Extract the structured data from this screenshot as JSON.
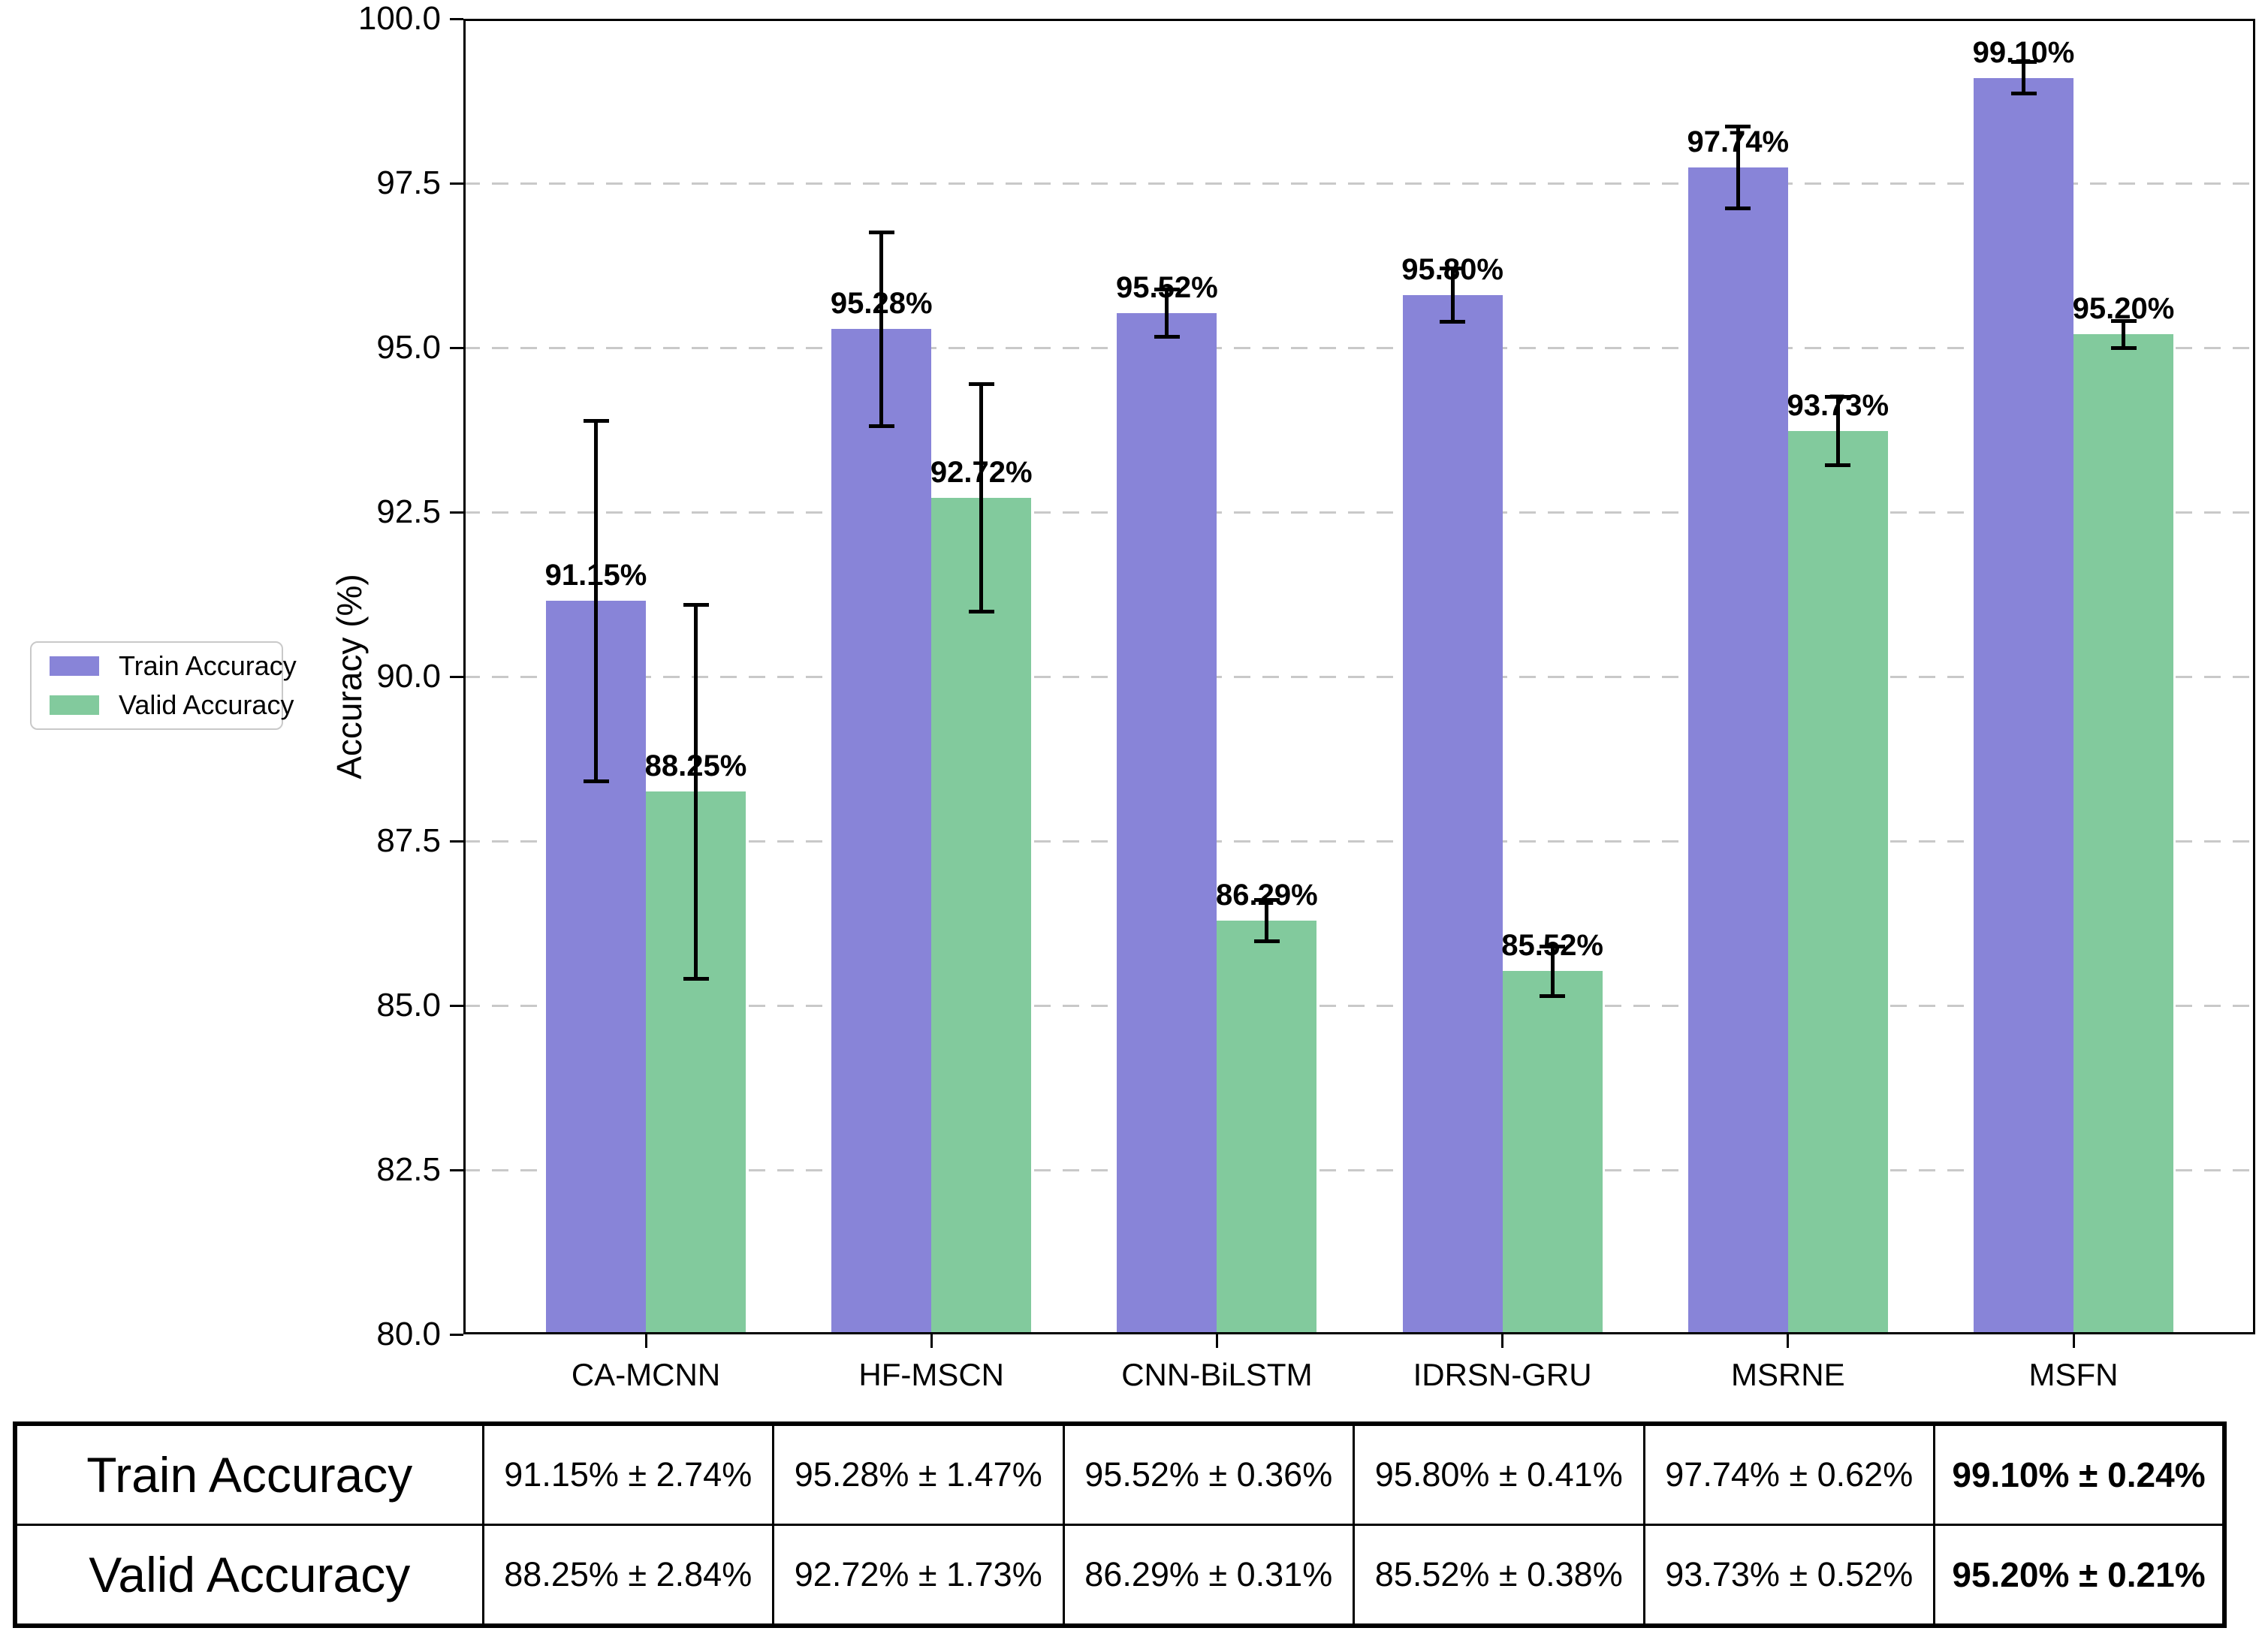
{
  "figure": {
    "background": "#ffffff"
  },
  "legend": {
    "items": [
      {
        "label": "Train Accuracy",
        "color": "#8884d8"
      },
      {
        "label": "Valid Accuracy",
        "color": "#82ca9d"
      }
    ]
  },
  "chart_data": {
    "type": "bar",
    "title": "",
    "xlabel": "",
    "ylabel": "Accuracy (%)",
    "ylim": [
      80,
      100
    ],
    "yticks": [
      80.0,
      82.5,
      85.0,
      87.5,
      90.0,
      92.5,
      95.0,
      97.5,
      100.0
    ],
    "ytick_labels": [
      "80.0",
      "82.5",
      "85.0",
      "87.5",
      "90.0",
      "92.5",
      "95.0",
      "97.5",
      "100.0"
    ],
    "grid": "horizontal-dashed",
    "legend_position": "outside-center-left",
    "categories": [
      "CA-MCNN",
      "HF-MSCN",
      "CNN-BiLSTM",
      "IDRSN-GRU",
      "MSRNE",
      "MSFN"
    ],
    "series": [
      {
        "name": "Train Accuracy",
        "color": "#8884d8",
        "values": [
          91.15,
          95.28,
          95.52,
          95.8,
          97.74,
          99.1
        ],
        "errors": [
          2.74,
          1.47,
          0.36,
          0.41,
          0.62,
          0.24
        ],
        "point_labels": [
          "91.15%",
          "95.28%",
          "95.52%",
          "95.80%",
          "97.74%",
          "99.10%"
        ]
      },
      {
        "name": "Valid Accuracy",
        "color": "#82ca9d",
        "values": [
          88.25,
          92.72,
          86.29,
          85.52,
          93.73,
          95.2
        ],
        "errors": [
          2.84,
          1.73,
          0.31,
          0.38,
          0.52,
          0.21
        ],
        "point_labels": [
          "88.25%",
          "92.72%",
          "86.29%",
          "85.52%",
          "93.73%",
          "95.20%"
        ]
      }
    ]
  },
  "table": {
    "rows": [
      {
        "header": "Train Accuracy",
        "cells": [
          "91.15% ± 2.74%",
          "95.28% ± 1.47%",
          "95.52% ± 0.36%",
          "95.80% ± 0.41%",
          "97.74% ± 0.62%",
          "99.10% ± 0.24%"
        ]
      },
      {
        "header": "Valid Accuracy",
        "cells": [
          "88.25% ± 2.84%",
          "92.72% ± 1.73%",
          "86.29% ± 0.31%",
          "85.52% ± 0.38%",
          "93.73% ± 0.52%",
          "95.20% ± 0.21%"
        ]
      }
    ]
  }
}
